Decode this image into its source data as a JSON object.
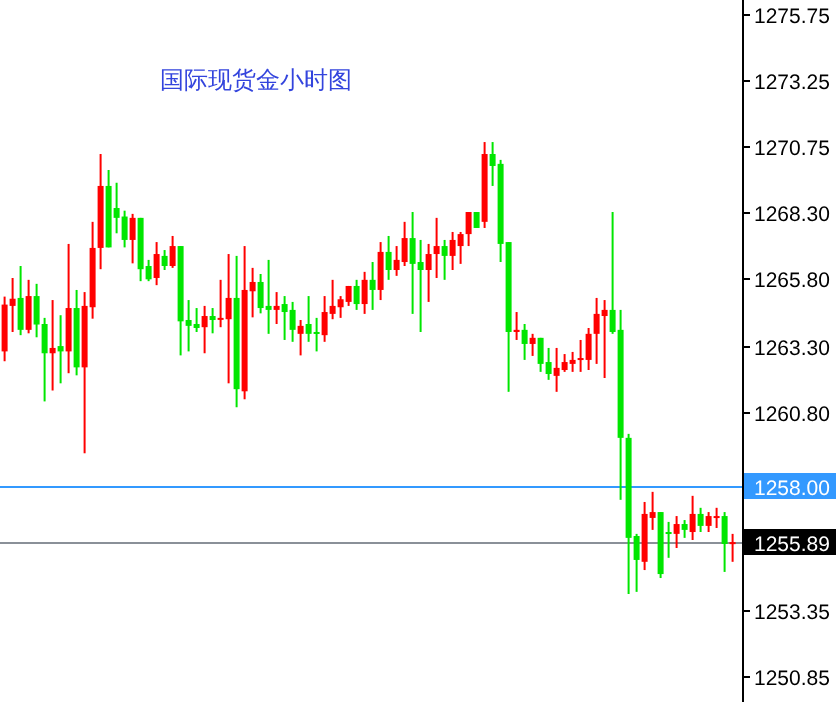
{
  "chart_data": {
    "type": "candlestick",
    "title": "国际现货金小时图",
    "categories": [
      null,
      null,
      null,
      null,
      null,
      null,
      null,
      null,
      null,
      null,
      null,
      null,
      null,
      null,
      null,
      null,
      null,
      null,
      null,
      null,
      null,
      null,
      null,
      null,
      null,
      null,
      null,
      null,
      null,
      null,
      null,
      null,
      null,
      null,
      null,
      null,
      null,
      null,
      null,
      null,
      null,
      null,
      null,
      null,
      null,
      null,
      null,
      null,
      null,
      null,
      null,
      null,
      null,
      null,
      null,
      null,
      null,
      null,
      null,
      null,
      null,
      null,
      null,
      null,
      null,
      null,
      null,
      null,
      null,
      null,
      null,
      null,
      null,
      null,
      null,
      null,
      null,
      null,
      null,
      null,
      null,
      null,
      null,
      null,
      null,
      null,
      null,
      null,
      null,
      null,
      null,
      null
    ],
    "ohlc": [
      [
        1263.06,
        1265.12,
        1262.69,
        1264.82
      ],
      [
        1264.77,
        1265.82,
        1263.79,
        1265.04
      ],
      [
        1265.07,
        1266.27,
        1263.67,
        1263.87
      ],
      [
        1263.87,
        1265.75,
        1263.74,
        1265.14
      ],
      [
        1265.14,
        1265.6,
        1263.59,
        1264.07
      ],
      [
        1264.09,
        1264.32,
        1261.18,
        1262.99
      ],
      [
        1262.99,
        1264.99,
        1261.59,
        1263.19
      ],
      [
        1263.26,
        1264.42,
        1261.86,
        1263.06
      ],
      [
        1263.06,
        1267.1,
        1262.24,
        1264.69
      ],
      [
        1264.69,
        1265.37,
        1262.16,
        1262.46
      ],
      [
        1262.46,
        1265.29,
        1259.23,
        1264.77
      ],
      [
        1264.72,
        1267.93,
        1264.29,
        1266.95
      ],
      [
        1266.95,
        1270.48,
        1266.15,
        1269.28
      ],
      [
        1269.28,
        1269.88,
        1266.97,
        1266.97
      ],
      [
        1268.45,
        1269.4,
        1267.5,
        1268.08
      ],
      [
        1268.13,
        1268.35,
        1266.97,
        1267.25
      ],
      [
        1267.25,
        1268.23,
        1266.37,
        1268.08
      ],
      [
        1268.08,
        1268.08,
        1265.7,
        1266.15
      ],
      [
        1266.27,
        1266.5,
        1265.7,
        1265.77
      ],
      [
        1265.82,
        1267.17,
        1265.55,
        1266.72
      ],
      [
        1266.65,
        1266.87,
        1266.12,
        1266.27
      ],
      [
        1266.27,
        1267.4,
        1266.2,
        1267.02
      ],
      [
        1267.02,
        1267.02,
        1262.91,
        1264.19
      ],
      [
        1264.24,
        1264.99,
        1263.06,
        1264.02
      ],
      [
        1264.09,
        1264.69,
        1263.79,
        1263.94
      ],
      [
        1263.97,
        1264.77,
        1262.99,
        1264.39
      ],
      [
        1264.39,
        1264.69,
        1263.74,
        1264.24
      ],
      [
        1264.27,
        1265.75,
        1263.97,
        1264.32
      ],
      [
        1264.27,
        1266.72,
        1261.86,
        1265.07
      ],
      [
        1265.07,
        1266.65,
        1260.96,
        1261.64
      ],
      [
        1261.56,
        1267.02,
        1261.26,
        1265.37
      ],
      [
        1265.32,
        1266.2,
        1264.34,
        1265.67
      ],
      [
        1265.67,
        1265.97,
        1264.49,
        1264.69
      ],
      [
        1264.77,
        1266.5,
        1263.72,
        1264.62
      ],
      [
        1264.62,
        1265.29,
        1264.09,
        1264.77
      ],
      [
        1264.84,
        1265.14,
        1263.49,
        1264.54
      ],
      [
        1264.62,
        1264.92,
        1263.42,
        1263.87
      ],
      [
        1263.72,
        1264.24,
        1262.91,
        1264.02
      ],
      [
        1264.09,
        1265.14,
        1263.42,
        1263.72
      ],
      [
        1263.79,
        1264.32,
        1263.06,
        1263.72
      ],
      [
        1263.67,
        1265.14,
        1263.42,
        1264.54
      ],
      [
        1264.47,
        1265.75,
        1264.27,
        1264.77
      ],
      [
        1264.72,
        1265.14,
        1264.32,
        1265.02
      ],
      [
        1264.92,
        1265.52,
        1264.77,
        1265.52
      ],
      [
        1265.52,
        1265.75,
        1264.62,
        1264.84
      ],
      [
        1264.84,
        1266.05,
        1264.47,
        1265.75
      ],
      [
        1265.75,
        1266.42,
        1264.62,
        1265.37
      ],
      [
        1265.37,
        1267.17,
        1264.99,
        1266.8
      ],
      [
        1266.8,
        1267.4,
        1265.75,
        1266.12
      ],
      [
        1266.12,
        1267.02,
        1265.9,
        1266.5
      ],
      [
        1266.42,
        1267.93,
        1266.27,
        1267.32
      ],
      [
        1267.32,
        1268.3,
        1264.47,
        1266.35
      ],
      [
        1266.42,
        1267.25,
        1263.79,
        1266.12
      ],
      [
        1266.12,
        1267.1,
        1264.92,
        1266.72
      ],
      [
        1266.72,
        1268.08,
        1265.82,
        1267.02
      ],
      [
        1267.02,
        1267.25,
        1265.75,
        1266.65
      ],
      [
        1266.65,
        1267.55,
        1266.12,
        1267.25
      ],
      [
        1267.02,
        1267.55,
        1266.35,
        1267.47
      ],
      [
        1267.47,
        1268.3,
        1267.02,
        1268.3
      ],
      [
        1268.3,
        1268.3,
        1267.7,
        1267.7
      ],
      [
        1267.93,
        1270.93,
        1267.7,
        1270.48
      ],
      [
        1270.48,
        1270.93,
        1269.28,
        1270.03
      ],
      [
        1270.11,
        1270.26,
        1266.42,
        1267.1
      ],
      [
        1267.17,
        1267.17,
        1261.54,
        1263.79
      ],
      [
        1263.79,
        1264.54,
        1263.49,
        1263.87
      ],
      [
        1263.87,
        1264.09,
        1262.74,
        1263.34
      ],
      [
        1263.34,
        1263.72,
        1262.89,
        1263.57
      ],
      [
        1263.57,
        1263.57,
        1262.29,
        1262.59
      ],
      [
        1262.66,
        1263.19,
        1261.99,
        1262.21
      ],
      [
        1262.14,
        1263.19,
        1261.54,
        1262.44
      ],
      [
        1262.36,
        1262.96,
        1262.29,
        1262.66
      ],
      [
        1262.59,
        1263.04,
        1262.29,
        1262.74
      ],
      [
        1262.74,
        1263.49,
        1262.29,
        1262.81
      ],
      [
        1262.74,
        1263.94,
        1262.36,
        1263.72
      ],
      [
        1263.72,
        1265.07,
        1262.59,
        1264.47
      ],
      [
        1264.39,
        1264.99,
        1262.06,
        1264.62
      ],
      [
        1264.62,
        1268.3,
        1263.72,
        1263.79
      ],
      [
        1263.87,
        1264.62,
        1257.48,
        1259.81
      ],
      [
        1259.81,
        1259.96,
        1253.94,
        1256.05
      ],
      [
        1256.12,
        1256.2,
        1254.02,
        1255.22
      ],
      [
        1255.15,
        1257.4,
        1254.84,
        1256.95
      ],
      [
        1256.8,
        1257.78,
        1256.35,
        1257.02
      ],
      [
        1257.02,
        1257.02,
        1254.54,
        1254.69
      ],
      [
        1256.27,
        1256.65,
        1255.3,
        1256.2
      ],
      [
        1256.2,
        1256.87,
        1255.67,
        1256.57
      ],
      [
        1256.57,
        1256.72,
        1256.05,
        1256.35
      ],
      [
        1256.27,
        1257.63,
        1255.97,
        1256.95
      ],
      [
        1256.95,
        1257.18,
        1256.27,
        1256.5
      ],
      [
        1256.5,
        1257.02,
        1256.27,
        1256.87
      ],
      [
        1256.8,
        1257.18,
        1256.42,
        1256.87
      ],
      [
        1256.87,
        1257.02,
        1254.77,
        1255.82
      ],
      [
        1255.82,
        1256.2,
        1255.15,
        1255.89
      ]
    ],
    "colors": [
      "#ff0000",
      "#ff0000",
      "#00e600",
      "#ff0000",
      "#00e600",
      "#00e600",
      "#ff0000",
      "#00e600",
      "#ff0000",
      "#00e600",
      "#ff0000",
      "#ff0000",
      "#ff0000",
      "#00e600",
      "#00e600",
      "#00e600",
      "#ff0000",
      "#00e600",
      "#00e600",
      "#ff0000",
      "#00e600",
      "#ff0000",
      "#00e600",
      "#00e600",
      "#00e600",
      "#ff0000",
      "#00e600",
      "#ff0000",
      "#ff0000",
      "#00e600",
      "#ff0000",
      "#ff0000",
      "#00e600",
      "#00e600",
      "#ff0000",
      "#00e600",
      "#00e600",
      "#ff0000",
      "#00e600",
      "#00e600",
      "#ff0000",
      "#ff0000",
      "#ff0000",
      "#ff0000",
      "#00e600",
      "#ff0000",
      "#00e600",
      "#ff0000",
      "#00e600",
      "#ff0000",
      "#ff0000",
      "#00e600",
      "#00e600",
      "#ff0000",
      "#ff0000",
      "#00e600",
      "#ff0000",
      "#ff0000",
      "#ff0000",
      "#00e600",
      "#ff0000",
      "#00e600",
      "#00e600",
      "#00e600",
      "#ff0000",
      "#00e600",
      "#ff0000",
      "#00e600",
      "#00e600",
      "#ff0000",
      "#ff0000",
      "#ff0000",
      "#ff0000",
      "#ff0000",
      "#ff0000",
      "#ff0000",
      "#00e600",
      "#00e600",
      "#00e600",
      "#00e600",
      "#ff0000",
      "#ff0000",
      "#00e600",
      "#00e600",
      "#ff0000",
      "#00e600",
      "#ff0000",
      "#00e600",
      "#ff0000",
      "#ff0000",
      "#00e600",
      "#ff0000"
    ],
    "ylim": [
      1249.88,
      1276.27
    ],
    "yticks": [
      {
        "value": 1275.75,
        "label": "1275.75"
      },
      {
        "value": 1273.25,
        "label": "1273.25"
      },
      {
        "value": 1270.75,
        "label": "1270.75"
      },
      {
        "value": 1268.3,
        "label": "1268.30"
      },
      {
        "value": 1265.8,
        "label": "1265.80"
      },
      {
        "value": 1263.3,
        "label": "1263.30"
      },
      {
        "value": 1260.8,
        "label": "1260.80"
      },
      {
        "value": 1253.35,
        "label": "1253.35"
      },
      {
        "value": 1250.85,
        "label": "1250.85"
      }
    ],
    "ref_lines": [
      {
        "axis": "y",
        "value": 1258.0,
        "label": "1258.00",
        "color": "#3399ff"
      },
      {
        "axis": "y",
        "value": 1255.89,
        "label": "1255.89",
        "color": "#8a9098"
      }
    ],
    "tick_labels": "y"
  }
}
